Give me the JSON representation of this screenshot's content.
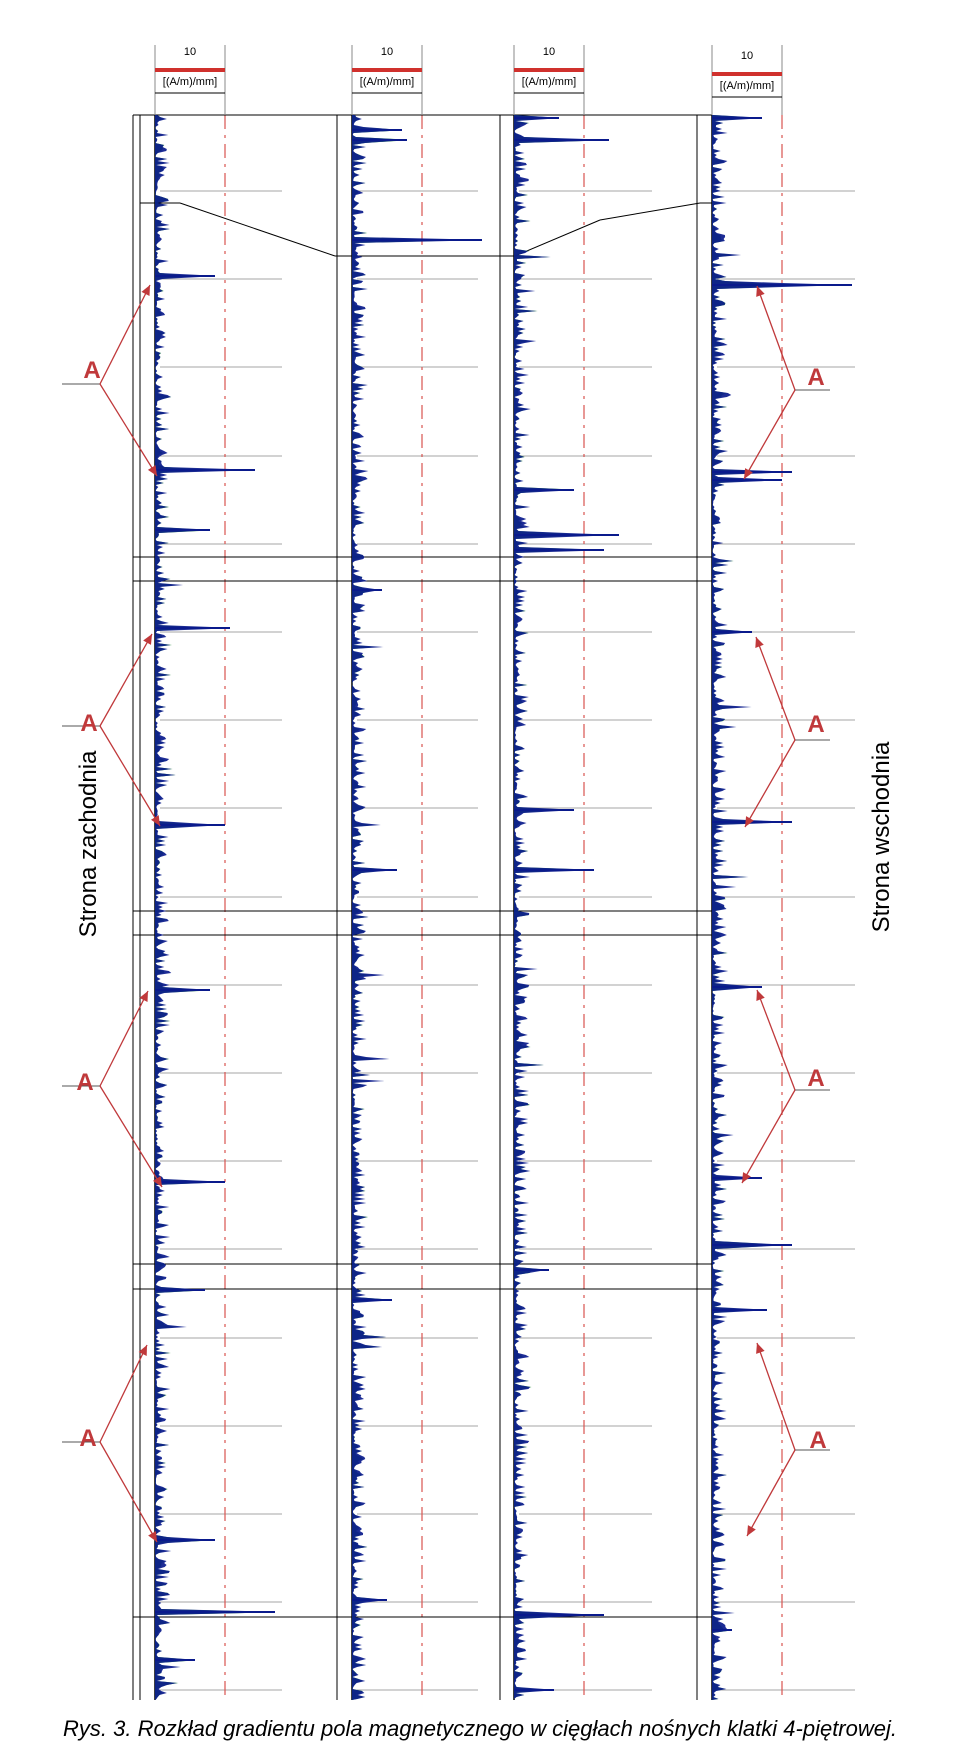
{
  "chart_data": {
    "type": "line",
    "channels": [
      {
        "scale_value": "10",
        "unit": "[(A/m)/mm]"
      },
      {
        "scale_value": "10",
        "unit": "[(A/m)/mm]"
      },
      {
        "scale_value": "10",
        "unit": "[(A/m)/mm]"
      },
      {
        "scale_value": "10",
        "unit": "[(A/m)/mm]"
      }
    ],
    "left_label": "Strona zachodnia",
    "right_label": "Strona wschodnia",
    "annotations": [
      "A",
      "A",
      "A",
      "A",
      "A",
      "A",
      "A",
      "A"
    ],
    "colors": {
      "signal": "#0a1a8c",
      "signal_alt": "#1f8f2a",
      "signal_red": "#d0312d",
      "threshold": "#d9534f",
      "scale_bar": "#d0312d",
      "annotation": "#c0393b"
    }
  },
  "caption": "Rys. 3. Rozkład gradientu pola magnetycznego w cięgłach nośnych klatki 4-piętrowej."
}
